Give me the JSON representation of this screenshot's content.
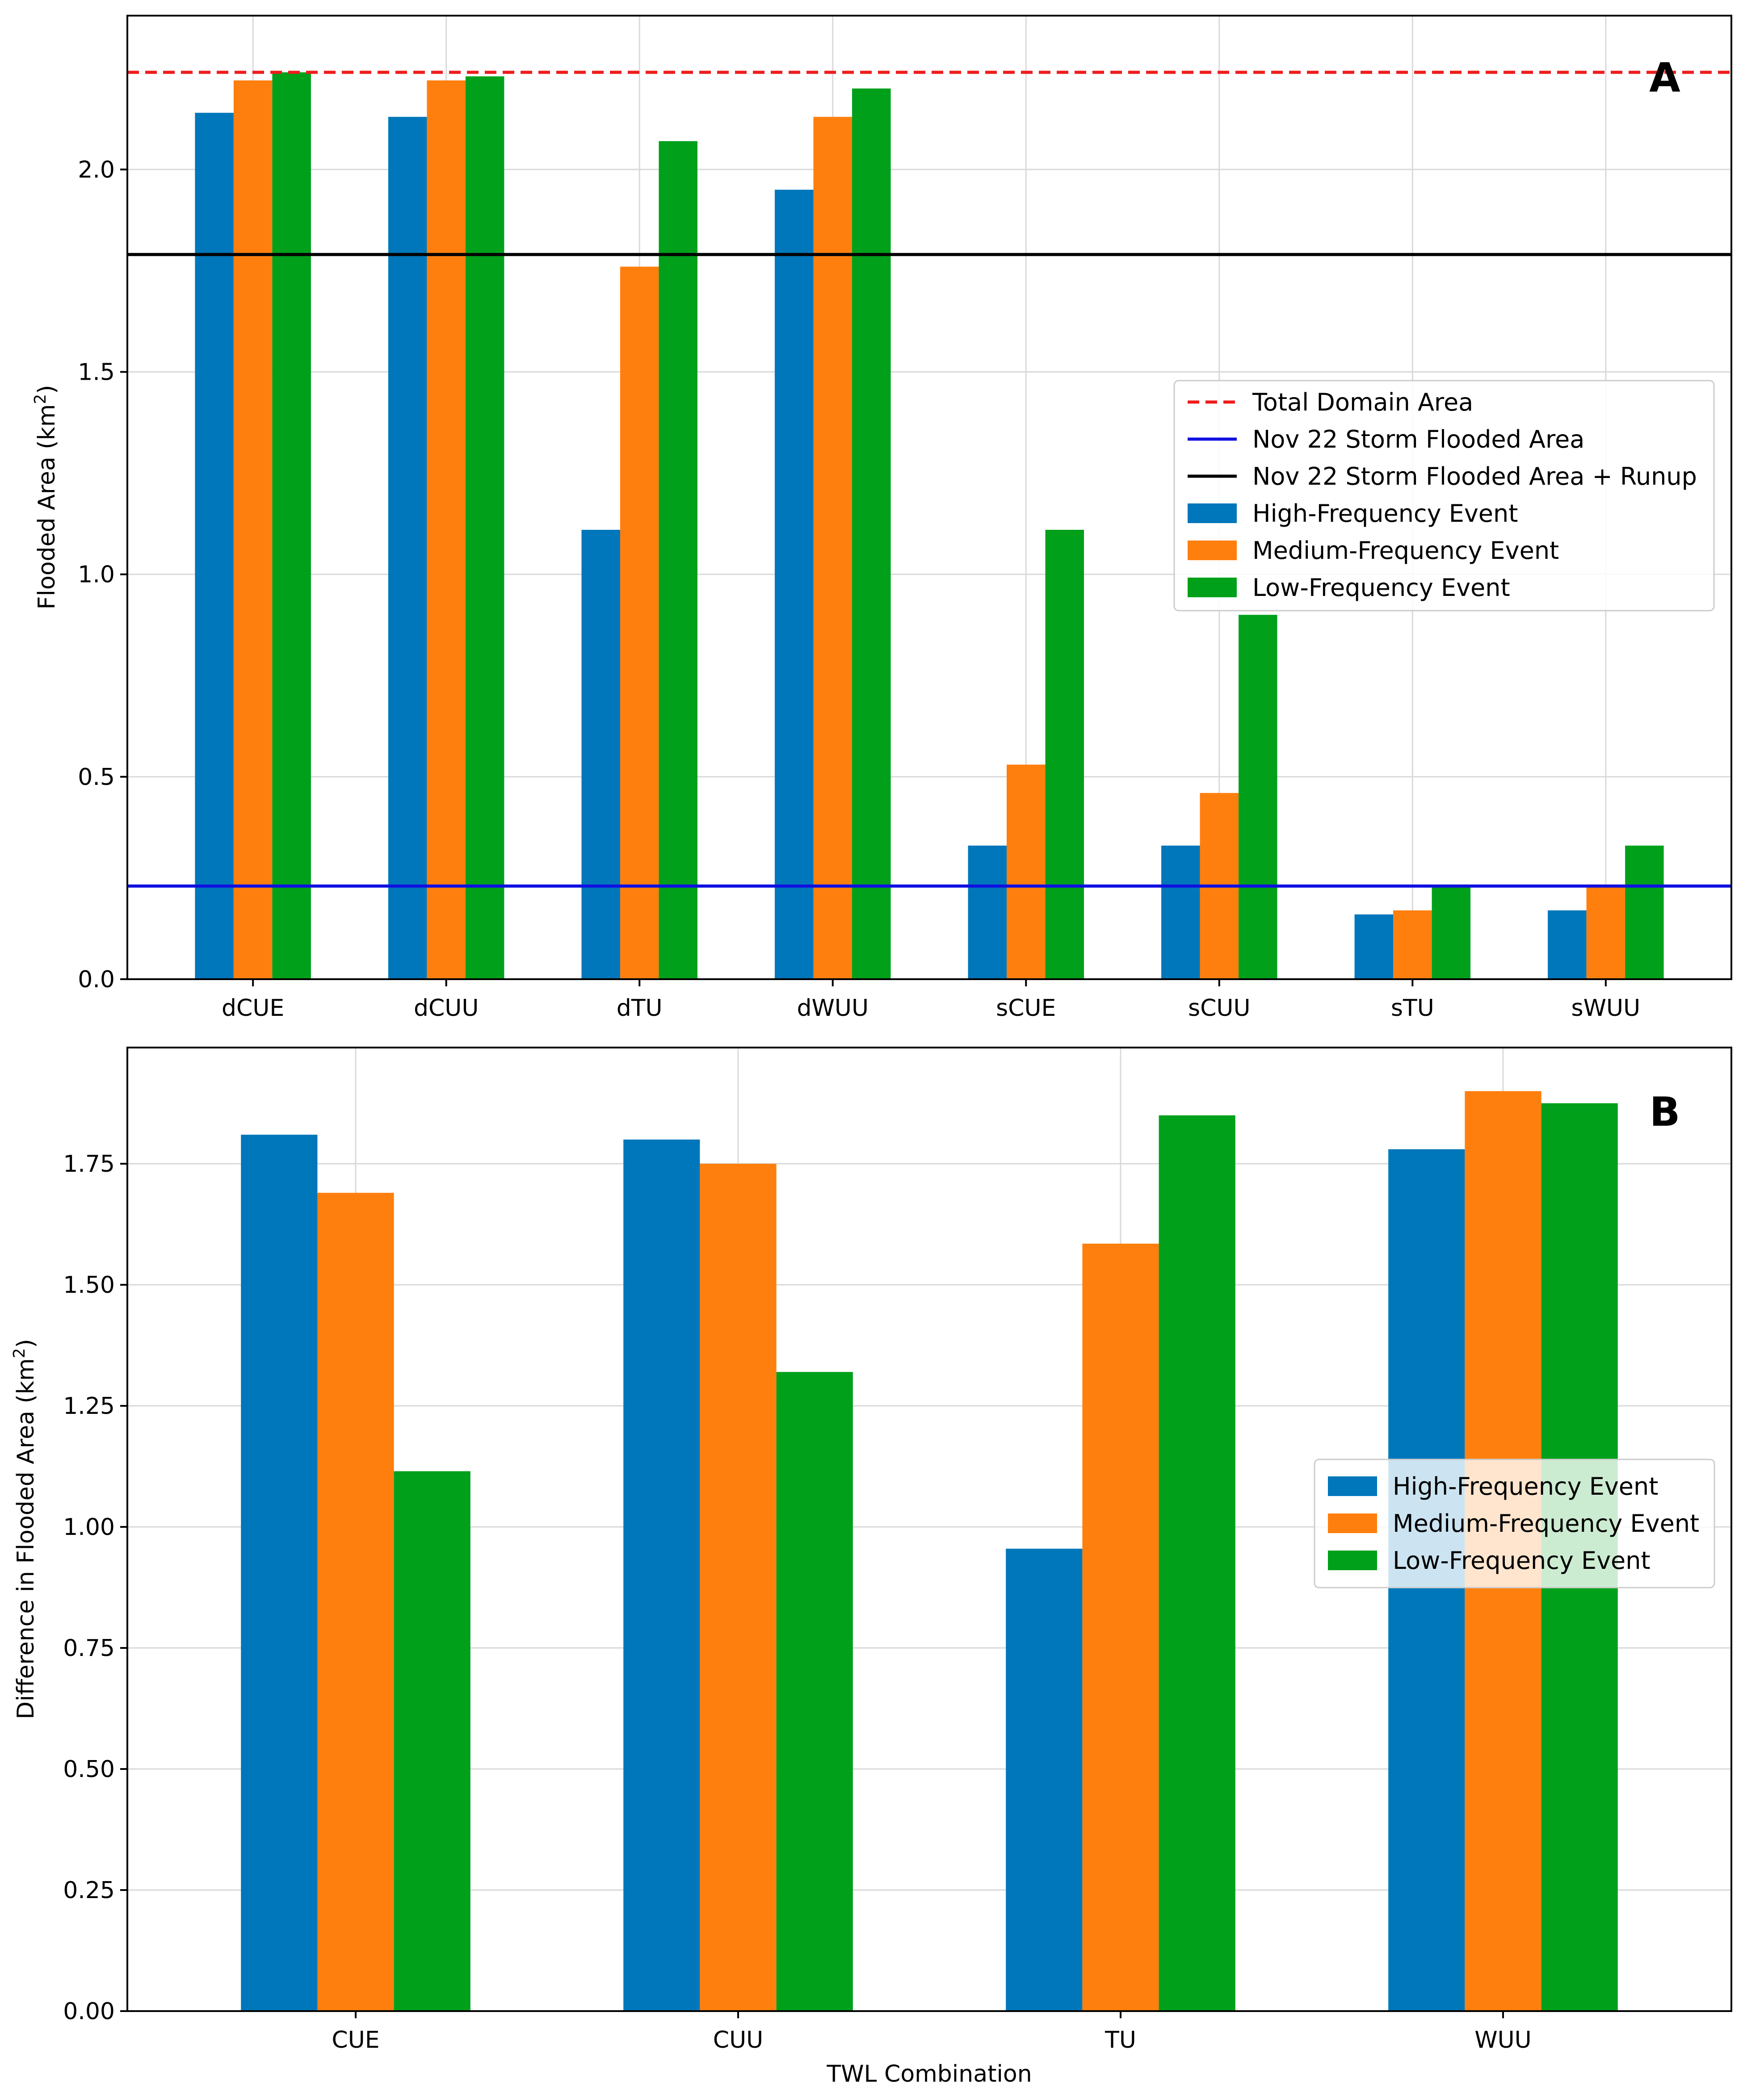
{
  "colors": {
    "high": "#0077bb",
    "medium": "#ff7f0e",
    "low": "#00a01a",
    "total_domain_line": "#ee1c1c",
    "storm_line": "#1010e0",
    "storm_runup_line": "#000000"
  },
  "chart_data": [
    {
      "panel": "A",
      "type": "bar",
      "categories": [
        "dCUE",
        "dCUU",
        "dTU",
        "dWUU",
        "sCUE",
        "sCUU",
        "sTU",
        "sWUU"
      ],
      "series": [
        {
          "name": "High-Frequency Event",
          "values": [
            2.14,
            2.13,
            1.11,
            1.95,
            0.33,
            0.33,
            0.16,
            0.17
          ]
        },
        {
          "name": "Medium-Frequency Event",
          "values": [
            2.22,
            2.22,
            1.76,
            2.13,
            0.53,
            0.46,
            0.17,
            0.23
          ]
        },
        {
          "name": "Low-Frequency Event",
          "values": [
            2.24,
            2.23,
            2.07,
            2.2,
            1.11,
            0.9,
            0.23,
            0.33
          ]
        }
      ],
      "reference_lines": [
        {
          "name": "Total Domain Area",
          "value": 2.24,
          "style": "dashed"
        },
        {
          "name": "Nov 22 Storm Flooded Area",
          "value": 0.23,
          "style": "solid"
        },
        {
          "name": "Nov 22 Storm Flooded Area + Runup",
          "value": 1.79,
          "style": "solid"
        }
      ],
      "ylabel_prefix": "Flooded Area (km",
      "ylabel_sup": "2",
      "ylabel_suffix": ")",
      "xlabel": "",
      "ylim": [
        0,
        2.38
      ],
      "yticks": [
        0.0,
        0.5,
        1.0,
        1.5,
        2.0
      ],
      "ytick_labels": [
        "0.0",
        "0.5",
        "1.0",
        "1.5",
        "2.0"
      ],
      "grid": true,
      "legend_position": "center-right",
      "legend": [
        "Total Domain Area",
        "Nov 22 Storm Flooded Area",
        "Nov 22 Storm Flooded Area + Runup",
        "High-Frequency Event",
        "Medium-Frequency Event",
        "Low-Frequency Event"
      ]
    },
    {
      "panel": "B",
      "type": "bar",
      "categories": [
        "CUE",
        "CUU",
        "TU",
        "WUU"
      ],
      "series": [
        {
          "name": "High-Frequency Event",
          "values": [
            1.81,
            1.8,
            0.955,
            1.78
          ]
        },
        {
          "name": "Medium-Frequency Event",
          "values": [
            1.69,
            1.75,
            1.585,
            1.9
          ]
        },
        {
          "name": "Low-Frequency Event",
          "values": [
            1.115,
            1.32,
            1.85,
            1.875
          ]
        }
      ],
      "ylabel_prefix": "Difference in Flooded Area (km",
      "ylabel_sup": "2",
      "ylabel_suffix": ")",
      "xlabel": "TWL Combination",
      "ylim": [
        0,
        1.99
      ],
      "yticks": [
        0.0,
        0.25,
        0.5,
        0.75,
        1.0,
        1.25,
        1.5,
        1.75
      ],
      "ytick_labels": [
        "0.00",
        "0.25",
        "0.50",
        "0.75",
        "1.00",
        "1.25",
        "1.50",
        "1.75"
      ],
      "grid": true,
      "legend_position": "center-right",
      "legend": [
        "High-Frequency Event",
        "Medium-Frequency Event",
        "Low-Frequency Event"
      ]
    }
  ]
}
